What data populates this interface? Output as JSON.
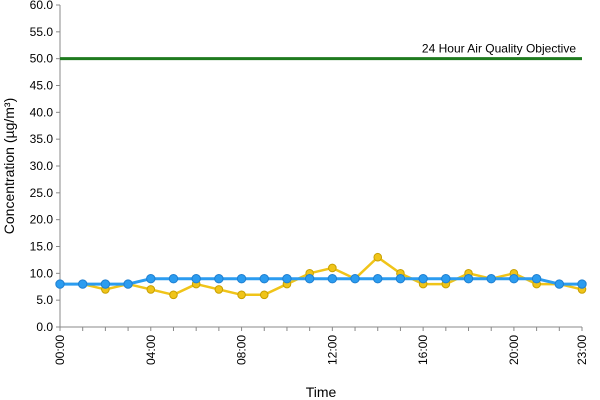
{
  "chart_data": {
    "type": "line",
    "title": "",
    "xlabel": "Time",
    "ylabel": "Concentration (µg/m³)",
    "ylim": [
      0,
      60
    ],
    "y_ticks": [
      "0.0",
      "5.0",
      "10.0",
      "15.0",
      "20.0",
      "25.0",
      "30.0",
      "35.0",
      "40.0",
      "45.0",
      "50.0",
      "55.0",
      "60.0"
    ],
    "x_tick_labels": [
      {
        "hour": 0,
        "label": "00:00"
      },
      {
        "hour": 4,
        "label": "04:00"
      },
      {
        "hour": 8,
        "label": "08:00"
      },
      {
        "hour": 12,
        "label": "12:00"
      },
      {
        "hour": 16,
        "label": "16:00"
      },
      {
        "hour": 20,
        "label": "20:00"
      },
      {
        "hour": 23,
        "label": "23:00"
      }
    ],
    "x": [
      0,
      1,
      2,
      3,
      4,
      5,
      6,
      7,
      8,
      9,
      10,
      11,
      12,
      13,
      14,
      15,
      16,
      17,
      18,
      19,
      20,
      21,
      22,
      23
    ],
    "series": [
      {
        "color": "#f0c419",
        "edge": "#c8a000",
        "values": [
          8,
          8,
          7,
          8,
          7,
          6,
          8,
          7,
          6,
          6,
          8,
          10,
          11,
          9,
          13,
          10,
          8,
          8,
          10,
          9,
          10,
          8,
          8,
          7
        ]
      },
      {
        "color": "#2b9cf0",
        "edge": "#1f7fd0",
        "values": [
          8,
          8,
          8,
          8,
          9,
          9,
          9,
          9,
          9,
          9,
          9,
          9,
          9,
          9,
          9,
          9,
          9,
          9,
          9,
          9,
          9,
          9,
          8,
          8
        ]
      }
    ],
    "reference_line": {
      "value": 50,
      "label": "24 Hour Air Quality Objective",
      "color": "#1e7a1e"
    },
    "grid": false,
    "legend": "none"
  }
}
